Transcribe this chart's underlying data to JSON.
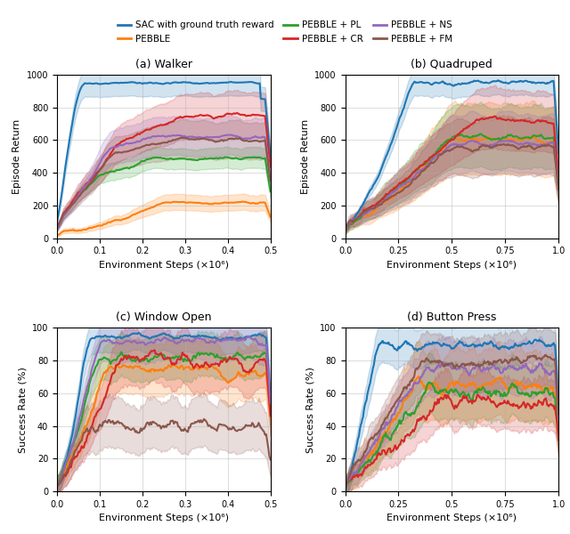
{
  "legend_entries": [
    {
      "label": "SAC with ground truth reward",
      "color": "#1f77b4"
    },
    {
      "label": "PEBBLE",
      "color": "#ff7f0e"
    },
    {
      "label": "PEBBLE + PL",
      "color": "#2ca02c"
    },
    {
      "label": "PEBBLE + CR",
      "color": "#d62728"
    },
    {
      "label": "PEBBLE + NS",
      "color": "#9467bd"
    },
    {
      "label": "PEBBLE + FM",
      "color": "#8c564b"
    }
  ],
  "subplots": [
    {
      "title": "(a) Walker",
      "xlabel": "Environment Steps (×10⁶)",
      "ylabel": "Episode Return",
      "xlim": [
        0,
        0.5
      ],
      "ylim": [
        0,
        1000
      ],
      "xticks": [
        0.0,
        0.1,
        0.2,
        0.3,
        0.4,
        0.5
      ],
      "xticklabels": [
        "0.0",
        "0.1",
        "0.2",
        "0.3",
        "0.4",
        "0.5"
      ],
      "yticks": [
        0,
        200,
        400,
        600,
        800,
        1000
      ],
      "yticklabels": [
        "0",
        "200",
        "400",
        "600",
        "800",
        "1000"
      ]
    },
    {
      "title": "(b) Quadruped",
      "xlabel": "Environment Steps (×10⁶)",
      "ylabel": "Episode Return",
      "xlim": [
        0,
        1.0
      ],
      "ylim": [
        0,
        1000
      ],
      "xticks": [
        0.0,
        0.25,
        0.5,
        0.75,
        1.0
      ],
      "xticklabels": [
        "0.0",
        "0.25",
        "0.5",
        "0.75",
        "1.0"
      ],
      "yticks": [
        0,
        200,
        400,
        600,
        800,
        1000
      ],
      "yticklabels": [
        "0",
        "200",
        "400",
        "600",
        "800",
        "1000"
      ]
    },
    {
      "title": "(c) Window Open",
      "xlabel": "Environment Steps (×10⁶)",
      "ylabel": "Success Rate (%)",
      "xlim": [
        0,
        0.5
      ],
      "ylim": [
        0,
        100
      ],
      "xticks": [
        0.0,
        0.1,
        0.2,
        0.3,
        0.4,
        0.5
      ],
      "xticklabels": [
        "0.0",
        "0.1",
        "0.2",
        "0.3",
        "0.4",
        "0.5"
      ],
      "yticks": [
        0,
        20,
        40,
        60,
        80,
        100
      ],
      "yticklabels": [
        "0",
        "20",
        "40",
        "60",
        "80",
        "100"
      ]
    },
    {
      "title": "(d) Button Press",
      "xlabel": "Environment Steps (×10⁶)",
      "ylabel": "Success Rate (%)",
      "xlim": [
        0,
        1.0
      ],
      "ylim": [
        0,
        100
      ],
      "xticks": [
        0.0,
        0.25,
        0.5,
        0.75,
        1.0
      ],
      "xticklabels": [
        "0.0",
        "0.25",
        "0.5",
        "0.75",
        "1.0"
      ],
      "yticks": [
        0,
        20,
        40,
        60,
        80,
        100
      ],
      "yticklabels": [
        "0",
        "20",
        "40",
        "60",
        "80",
        "100"
      ]
    }
  ],
  "colors": {
    "SAC": "#1f77b4",
    "PEBBLE": "#ff7f0e",
    "PL": "#2ca02c",
    "CR": "#d62728",
    "NS": "#9467bd",
    "FM": "#8c564b"
  }
}
